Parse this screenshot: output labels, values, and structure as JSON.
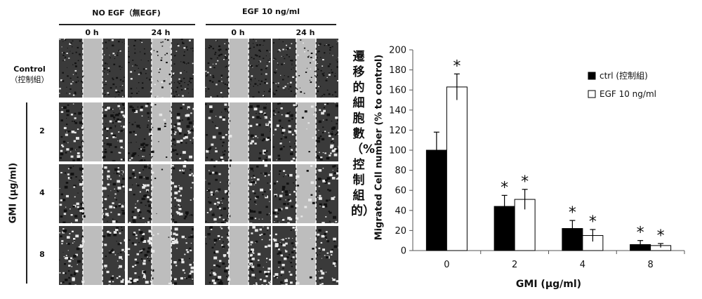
{
  "figure": {
    "header_no_egf": "NO EGF（無EGF)",
    "header_egf": "EGF 10 ng/ml",
    "col_0h": "0 h",
    "col_24h": "24 h",
    "row_control_line1": "Control",
    "row_control_line2": "（控制組）",
    "gmi_axis_label": "GMI (μg/ml)",
    "row_2": "2",
    "row_4": "4",
    "row_8": "8"
  },
  "chart_data": {
    "type": "bar",
    "categories": [
      "0",
      "2",
      "4",
      "8"
    ],
    "series": [
      {
        "name": "ctrl (控制組)",
        "color": "#000000",
        "values": [
          100,
          44,
          22,
          6
        ],
        "errors": [
          18,
          11,
          8,
          4
        ],
        "significance": [
          "",
          "*",
          "*",
          "*"
        ]
      },
      {
        "name": "EGF 10 ng/ml",
        "color": "#ffffff",
        "values": [
          163,
          51,
          15,
          5
        ],
        "errors": [
          13,
          10,
          6,
          2
        ],
        "significance": [
          "*",
          "*",
          "*",
          "*"
        ]
      }
    ],
    "ylabel_zh": "遷移的細胞數（%控制組的）",
    "ylabel_en": "Migrated Cell number (% to control)",
    "xlabel": "GMI (μg/ml)",
    "ylim": [
      0,
      200
    ],
    "yticks": [
      "0",
      "20",
      "40",
      "60",
      "80",
      "100",
      "120",
      "140",
      "160",
      "180",
      "200"
    ],
    "grid": false,
    "legend_position": "right"
  }
}
